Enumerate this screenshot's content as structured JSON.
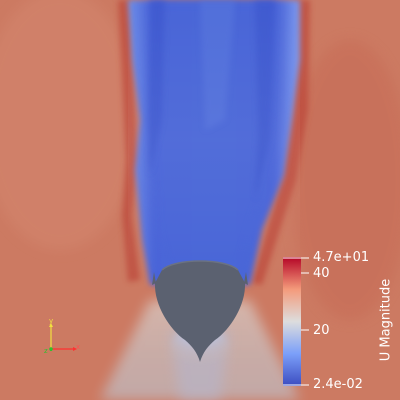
{
  "render": {
    "colormap": "Cool to Warm",
    "colors": {
      "low": "#3b4cc0",
      "mid": "#dddddd",
      "high": "#b40426",
      "background_field": "#cc7a62",
      "body": "#5b6170"
    }
  },
  "colorbar": {
    "title": "U Magnitude",
    "max_label": "4.7e+01",
    "min_label": "2.4e-02",
    "ticks": [
      {
        "label": "40"
      },
      {
        "label": "20"
      }
    ],
    "range": [
      0.024,
      47
    ]
  },
  "axes_triad": {
    "x_label": "x",
    "y_label": "y",
    "z_label": "z",
    "x_color": "#ff3030",
    "y_color": "#f0e040",
    "z_color": "#30c030"
  }
}
